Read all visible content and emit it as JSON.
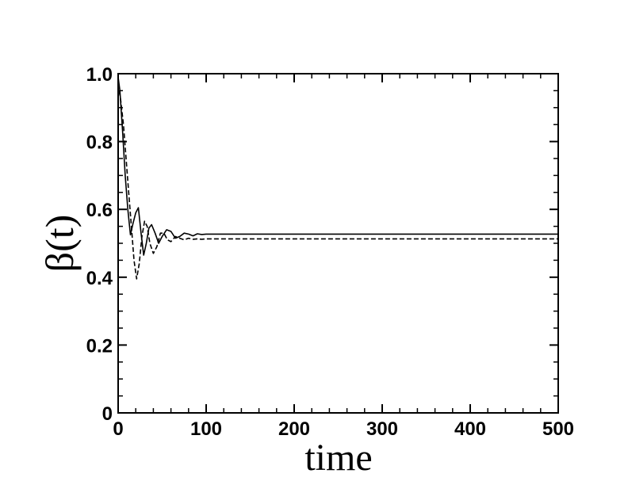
{
  "chart_data": {
    "type": "line",
    "title": "",
    "xlabel": "time",
    "ylabel": "β(t)",
    "xlim": [
      0,
      500
    ],
    "ylim": [
      0,
      1
    ],
    "xticks": [
      0,
      100,
      200,
      300,
      400,
      500
    ],
    "xtick_labels": [
      "0",
      "100",
      "200",
      "300",
      "400",
      "500"
    ],
    "yticks": [
      0,
      0.2,
      0.4,
      0.6,
      0.8,
      1.0
    ],
    "ytick_labels": [
      "0",
      "0.2",
      "0.4",
      "0.6",
      "0.8",
      "1.0"
    ],
    "grid": false,
    "legend": "none",
    "series": [
      {
        "style": "solid",
        "color": "#000000",
        "x": [
          0,
          2,
          5,
          8,
          11,
          14,
          17,
          20,
          23,
          26,
          29,
          32,
          35,
          38,
          42,
          46,
          50,
          55,
          60,
          65,
          70,
          75,
          80,
          85,
          90,
          95,
          100,
          110,
          150,
          300,
          500
        ],
        "y": [
          0.99,
          0.95,
          0.83,
          0.7,
          0.6,
          0.525,
          0.56,
          0.59,
          0.605,
          0.53,
          0.465,
          0.5,
          0.545,
          0.555,
          0.53,
          0.5,
          0.52,
          0.54,
          0.535,
          0.515,
          0.52,
          0.53,
          0.527,
          0.522,
          0.528,
          0.526,
          0.527,
          0.527,
          0.527,
          0.527,
          0.527
        ]
      },
      {
        "style": "dashed",
        "color": "#000000",
        "x": [
          0,
          3,
          6,
          9,
          12,
          15,
          18,
          21,
          24,
          27,
          30,
          33,
          36,
          40,
          44,
          48,
          52,
          56,
          60,
          65,
          70,
          75,
          80,
          85,
          90,
          95,
          100,
          110,
          150,
          300,
          500
        ],
        "y": [
          0.97,
          0.92,
          0.85,
          0.75,
          0.65,
          0.55,
          0.45,
          0.395,
          0.44,
          0.52,
          0.565,
          0.55,
          0.5,
          0.47,
          0.49,
          0.53,
          0.53,
          0.51,
          0.505,
          0.52,
          0.515,
          0.51,
          0.515,
          0.512,
          0.513,
          0.512,
          0.513,
          0.513,
          0.513,
          0.513,
          0.513
        ]
      }
    ]
  }
}
